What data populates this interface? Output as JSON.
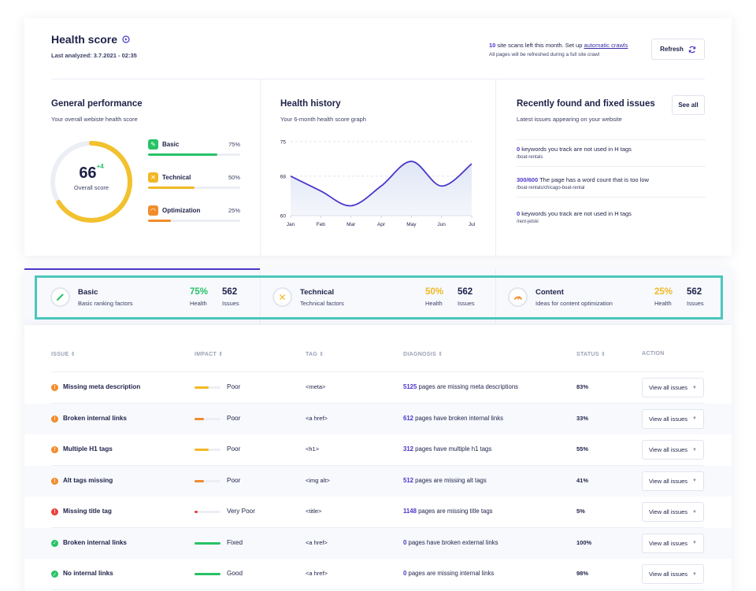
{
  "header": {
    "title": "Health score",
    "last_analyzed": "Last analyzed: 3.7.2021 - 02:35",
    "scans_count": "10",
    "scans_text": " site scans left this month. Set up ",
    "scans_link": "automatic crawls",
    "refresh_note": "All pages will be refreshed during a full site crawl",
    "refresh_label": "Refresh"
  },
  "general": {
    "title": "General performance",
    "subtitle": "Your overall webiste health score",
    "score": "66",
    "delta": "+4",
    "score_label": "Overall score",
    "score_value": 0.66,
    "metrics": [
      {
        "label": "Basic",
        "pct": "75%",
        "value": 0.75,
        "color": "#27c266"
      },
      {
        "label": "Technical",
        "pct": "50%",
        "value": 0.5,
        "color": "#f2b824"
      },
      {
        "label": "Optimization",
        "pct": "25%",
        "value": 0.25,
        "color": "#f28c2c"
      }
    ]
  },
  "history": {
    "title": "Health history",
    "subtitle": "Your 6-month health score graph"
  },
  "chart_data": {
    "type": "line",
    "categories": [
      "Jan",
      "Feb",
      "Mar",
      "Apr",
      "May",
      "Jun",
      "Jul"
    ],
    "values": [
      68,
      65,
      62,
      66,
      71,
      66,
      70.5
    ],
    "ylim": [
      60,
      75
    ],
    "yticks": [
      "75",
      "68",
      "60"
    ],
    "grid": true
  },
  "recent": {
    "title": "Recently found and fixed issues",
    "subtitle": "Latest issues appearing on your website",
    "see_all": "See all",
    "items": [
      {
        "count": "0",
        "text": " keywords you track are not used in H tags",
        "path": "/boat-rentals"
      },
      {
        "count": "300/600",
        "text": " The page has a word count that is too low",
        "path": "/boat-rentals/chicago-boat-rental"
      },
      {
        "count": "0",
        "text": " keywords you track are not used in H tags",
        "path": "/rent-jetski"
      }
    ]
  },
  "categories": [
    {
      "name": "Basic",
      "desc": "Basic ranking factors",
      "health": "75%",
      "health_label": "Health",
      "issues": "562",
      "issues_label": "Issues",
      "color": "#27c266"
    },
    {
      "name": "Technical",
      "desc": "Technical factors",
      "health": "50%",
      "health_label": "Health",
      "issues": "562",
      "issues_label": "Issues",
      "color": "#f2b824"
    },
    {
      "name": "Content",
      "desc": "Ideas for content optimization",
      "health": "25%",
      "health_label": "Health",
      "issues": "562",
      "issues_label": "Issues",
      "color": "#f28c2c"
    }
  ],
  "table": {
    "headers": [
      "ISSUE",
      "IMPACT",
      "TAG",
      "DIAGNOSIS",
      "STATUS",
      "ACTION"
    ],
    "rows": [
      {
        "issue": "Missing meta description",
        "sev": "warn",
        "impact": "Poor",
        "impact_value": 0.55,
        "impact_color": "#f2b824",
        "tag": "<meta>",
        "dcount": "5125",
        "dtext": " pages are missing meta descriptions",
        "status": "83%",
        "action": "View all issues"
      },
      {
        "issue": "Broken internal links",
        "sev": "warn",
        "impact": "Poor",
        "impact_value": 0.35,
        "impact_color": "#f28c2c",
        "tag": "<a href>",
        "dcount": "612",
        "dtext": " pages have broken internal links",
        "status": "33%",
        "action": "View all issues"
      },
      {
        "issue": "Multiple H1 tags",
        "sev": "warn",
        "impact": "Poor",
        "impact_value": 0.55,
        "impact_color": "#f2b824",
        "tag": "<h1>",
        "dcount": "312",
        "dtext": " pages have multiple h1 tags",
        "status": "55%",
        "action": "View all issues"
      },
      {
        "issue": "Alt tags missing",
        "sev": "warn",
        "impact": "Poor",
        "impact_value": 0.35,
        "impact_color": "#f28c2c",
        "tag": "<img alt>",
        "dcount": "512",
        "dtext": " pages are missing alt tags",
        "status": "41%",
        "action": "View all issues"
      },
      {
        "issue": "Missing title tag",
        "sev": "error",
        "impact": "Very Poor",
        "impact_value": 0.12,
        "impact_color": "#e8413c",
        "tag": "<title>",
        "dcount": "1148",
        "dtext": " pages are missing title tags",
        "status": "5%",
        "action": "View all issues"
      },
      {
        "issue": "Broken internal links",
        "sev": "ok",
        "impact": "Fixed",
        "impact_value": 1.0,
        "impact_color": "#27c266",
        "tag": "<a href>",
        "dcount": "0",
        "dtext": " pages have broken external links",
        "status": "100%",
        "action": "View all issues"
      },
      {
        "issue": "No internal links",
        "sev": "ok",
        "impact": "Good",
        "impact_value": 1.0,
        "impact_color": "#27c266",
        "tag": "<a href>",
        "dcount": "0",
        "dtext": " pages are missing internal links",
        "status": "98%",
        "action": "View all issues"
      }
    ]
  }
}
